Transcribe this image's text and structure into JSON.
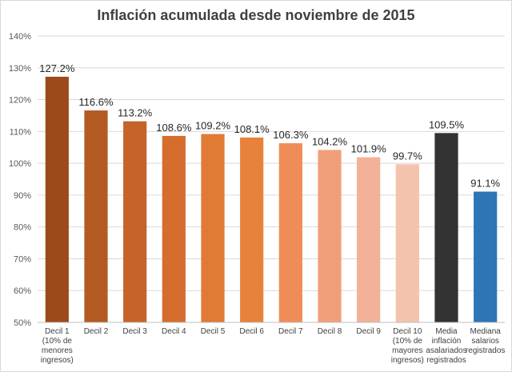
{
  "chart_data": {
    "type": "bar",
    "title": "Inflación acumulada desde noviembre de 2015",
    "xlabel": "",
    "ylabel": "",
    "ylim": [
      50,
      140
    ],
    "yticks": [
      50,
      60,
      70,
      80,
      90,
      100,
      110,
      120,
      130,
      140
    ],
    "ytick_labels": [
      "50%",
      "60%",
      "70%",
      "80%",
      "90%",
      "100%",
      "110%",
      "120%",
      "130%",
      "140%"
    ],
    "grid": true,
    "legend": "none",
    "categories": [
      [
        "Decil 1",
        "(10% de",
        "menores",
        "ingresos)"
      ],
      [
        "Decil 2"
      ],
      [
        "Decil 3"
      ],
      [
        "Decil 4"
      ],
      [
        "Decil 5"
      ],
      [
        "Decil 6"
      ],
      [
        "Decil 7"
      ],
      [
        "Decil 8"
      ],
      [
        "Decil 9"
      ],
      [
        "Decil 10",
        "(10% de",
        "mayores",
        "ingresos)"
      ],
      [
        "Media",
        "inflación",
        "asalariados",
        "registrados"
      ],
      [
        "Mediana",
        "salarios",
        "registrados"
      ]
    ],
    "values": [
      127.2,
      116.6,
      113.2,
      108.6,
      109.2,
      108.1,
      106.3,
      104.2,
      101.9,
      99.7,
      109.5,
      91.1
    ],
    "data_labels": [
      "127.2%",
      "116.6%",
      "113.2%",
      "108.6%",
      "109.2%",
      "108.1%",
      "106.3%",
      "104.2%",
      "101.9%",
      "99.7%",
      "109.5%",
      "91.1%"
    ],
    "colors": [
      "#9c4a1a",
      "#b35a22",
      "#c4632a",
      "#d56d2e",
      "#e07a35",
      "#e8823a",
      "#ef8d58",
      "#f19f7a",
      "#f3b198",
      "#f4c3ae",
      "#333333",
      "#2e75b6"
    ]
  }
}
